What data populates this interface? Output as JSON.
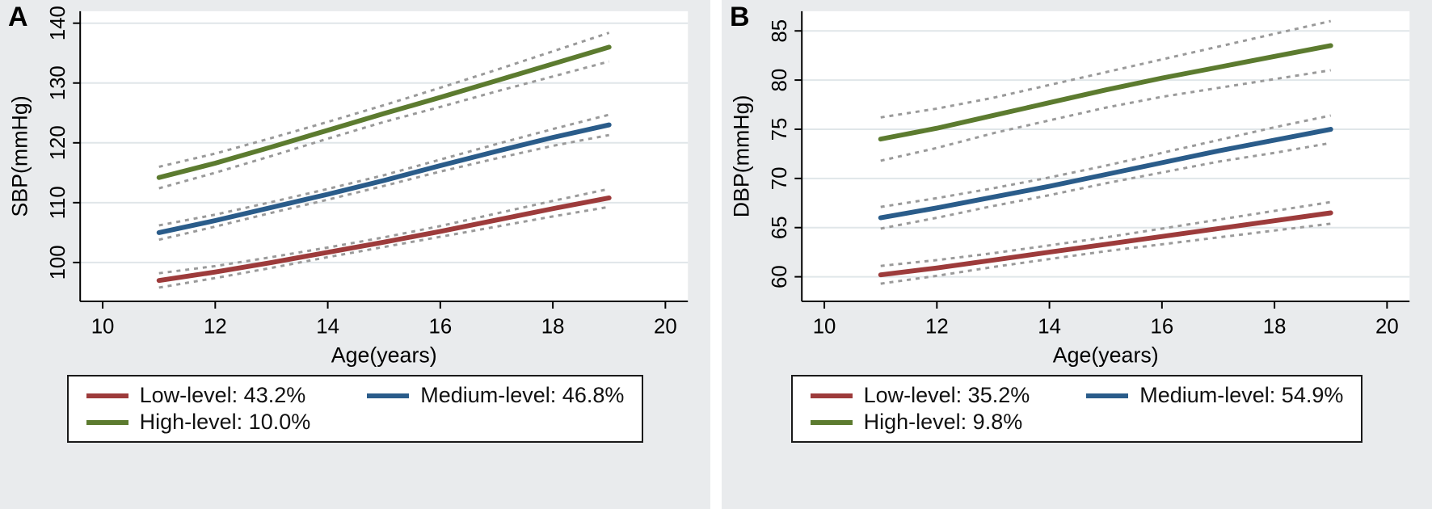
{
  "figure_bg": "#e9ebed",
  "plot_bg": "#ffffff",
  "grid_color": "#e0e6e9",
  "axis_color": "#000000",
  "ci_color": "#9a9a9a",
  "chart_data": [
    {
      "type": "line",
      "panel_label": "A",
      "xlabel": "Age(years)",
      "ylabel": "SBP(mmHg)",
      "xlim": [
        9.6,
        20.4
      ],
      "ylim": [
        93.5,
        142
      ],
      "xticks": [
        10,
        12,
        14,
        16,
        18,
        20
      ],
      "yticks": [
        100,
        110,
        120,
        130,
        140
      ],
      "x": [
        11,
        12,
        13,
        14,
        15,
        16,
        17,
        18,
        19
      ],
      "series": [
        {
          "name": "Low-level",
          "legend_label": "Low-level: 43.2%",
          "color": "#9d3b3b",
          "values": [
            97.0,
            98.4,
            100.0,
            101.7,
            103.4,
            105.2,
            107.1,
            109.0,
            110.8
          ],
          "ci_upper": [
            98.2,
            99.4,
            100.9,
            102.5,
            104.2,
            106.1,
            108.2,
            110.3,
            112.3
          ],
          "ci_lower": [
            95.8,
            97.4,
            99.1,
            100.9,
            102.6,
            104.3,
            106.0,
            107.7,
            109.3
          ]
        },
        {
          "name": "Medium-level",
          "legend_label": "Medium-level: 46.8%",
          "color": "#2a5c8a",
          "values": [
            105.0,
            107.0,
            109.2,
            111.4,
            113.7,
            116.2,
            118.6,
            120.9,
            123.0
          ],
          "ci_upper": [
            106.2,
            108.0,
            110.1,
            112.3,
            114.6,
            117.2,
            119.8,
            122.3,
            124.7
          ],
          "ci_lower": [
            103.8,
            106.0,
            108.3,
            110.5,
            112.8,
            115.2,
            117.4,
            119.5,
            121.3
          ]
        },
        {
          "name": "High-level",
          "legend_label": "High-level: 10.0%",
          "color": "#5c7b2f",
          "values": [
            114.2,
            116.6,
            119.3,
            122.1,
            124.9,
            127.6,
            130.4,
            133.2,
            136.0
          ],
          "ci_upper": [
            116.0,
            118.2,
            120.8,
            123.5,
            126.3,
            129.2,
            132.2,
            135.3,
            138.4
          ],
          "ci_lower": [
            112.4,
            115.0,
            117.8,
            120.7,
            123.5,
            126.0,
            128.6,
            131.1,
            133.6
          ]
        }
      ]
    },
    {
      "type": "line",
      "panel_label": "B",
      "xlabel": "Age(years)",
      "ylabel": "DBP(mmHg)",
      "xlim": [
        9.6,
        20.4
      ],
      "ylim": [
        57.5,
        87
      ],
      "xticks": [
        10,
        12,
        14,
        16,
        18,
        20
      ],
      "yticks": [
        60,
        65,
        70,
        75,
        80,
        85
      ],
      "x": [
        11,
        12,
        13,
        14,
        15,
        16,
        17,
        18,
        19
      ],
      "series": [
        {
          "name": "Low-level",
          "legend_label": "Low-level: 35.2%",
          "color": "#9d3b3b",
          "values": [
            60.2,
            60.9,
            61.7,
            62.5,
            63.3,
            64.1,
            64.9,
            65.7,
            66.5
          ],
          "ci_upper": [
            61.1,
            61.7,
            62.4,
            63.2,
            64.0,
            64.9,
            65.8,
            66.7,
            67.6
          ],
          "ci_lower": [
            59.3,
            60.1,
            61.0,
            61.8,
            62.6,
            63.3,
            64.0,
            64.7,
            65.4
          ]
        },
        {
          "name": "Medium-level",
          "legend_label": "Medium-level: 54.9%",
          "color": "#2a5c8a",
          "values": [
            66.0,
            67.0,
            68.1,
            69.2,
            70.4,
            71.6,
            72.8,
            73.9,
            75.0
          ],
          "ci_upper": [
            67.1,
            68.0,
            69.0,
            70.1,
            71.3,
            72.6,
            73.9,
            75.2,
            76.4
          ],
          "ci_lower": [
            64.9,
            66.0,
            67.2,
            68.3,
            69.5,
            70.6,
            71.7,
            72.6,
            73.6
          ]
        },
        {
          "name": "High-level",
          "legend_label": "High-level: 9.8%",
          "color": "#5c7b2f",
          "values": [
            74.0,
            75.1,
            76.4,
            77.7,
            79.0,
            80.2,
            81.3,
            82.4,
            83.5
          ],
          "ci_upper": [
            76.2,
            77.1,
            78.2,
            79.5,
            80.8,
            82.1,
            83.4,
            84.7,
            86.0
          ],
          "ci_lower": [
            71.8,
            73.1,
            74.6,
            75.9,
            77.2,
            78.3,
            79.2,
            80.1,
            81.0
          ]
        }
      ]
    }
  ]
}
